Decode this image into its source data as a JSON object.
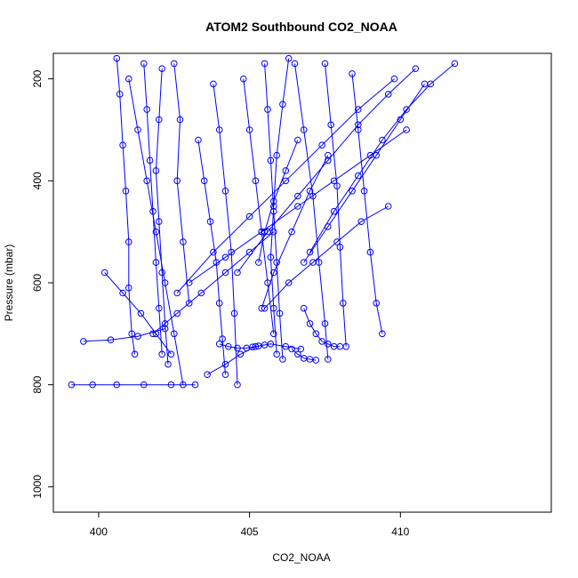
{
  "chart_data": {
    "type": "line",
    "title": "ATOM2 Southbound CO2_NOAA",
    "xlabel": "CO2_NOAA",
    "ylabel": "Pressure (mbar)",
    "xlim": [
      398.5,
      415
    ],
    "ylim": [
      1050,
      150
    ],
    "y_reversed": true,
    "x_ticks": [
      400,
      405,
      410
    ],
    "y_ticks": [
      200,
      400,
      600,
      800,
      1000
    ],
    "grid": false,
    "legend": "none",
    "color": "#0000ff",
    "markers": "open-circle",
    "series": [
      {
        "x": [
          400.6,
          400.7,
          400.8,
          400.9,
          401.0,
          401.0,
          401.1,
          401.2
        ],
        "y": [
          160,
          230,
          330,
          420,
          520,
          610,
          700,
          740
        ]
      },
      {
        "x": [
          401.5,
          401.6,
          401.7,
          401.8,
          401.9,
          402.0,
          402.1
        ],
        "y": [
          170,
          260,
          360,
          460,
          560,
          650,
          740
        ]
      },
      {
        "x": [
          402.1,
          402.0,
          401.9,
          402.0,
          402.1,
          402.2,
          402.3
        ],
        "y": [
          180,
          280,
          380,
          480,
          580,
          680,
          760
        ]
      },
      {
        "x": [
          401.0,
          401.3,
          401.6,
          401.9,
          402.2,
          402.5,
          402.8
        ],
        "y": [
          200,
          300,
          400,
          500,
          600,
          700,
          800
        ]
      },
      {
        "x": [
          400.2,
          400.8,
          401.4,
          401.9,
          402.4
        ],
        "y": [
          580,
          620,
          660,
          700,
          740
        ]
      },
      {
        "x": [
          399.1,
          399.8,
          400.6,
          401.5,
          402.4,
          403.2
        ],
        "y": [
          800,
          800,
          800,
          800,
          800,
          800
        ]
      },
      {
        "x": [
          399.5,
          400.4,
          401.3,
          402.2
        ],
        "y": [
          715,
          712,
          705,
          690
        ]
      },
      {
        "x": [
          402.5,
          402.7,
          402.6,
          402.8,
          403.0
        ],
        "y": [
          170,
          280,
          400,
          520,
          640
        ]
      },
      {
        "x": [
          403.3,
          403.5,
          403.7,
          403.9,
          404.0,
          404.1,
          404.2
        ],
        "y": [
          320,
          400,
          480,
          560,
          640,
          710,
          780
        ]
      },
      {
        "x": [
          403.8,
          404.0,
          404.2,
          404.4,
          404.5,
          404.6
        ],
        "y": [
          210,
          300,
          420,
          540,
          660,
          800
        ]
      },
      {
        "x": [
          404.0,
          404.3,
          404.6,
          404.9,
          405.1,
          405.3,
          405.5
        ],
        "y": [
          720,
          725,
          728,
          728,
          726,
          724,
          722
        ]
      },
      {
        "x": [
          403.6,
          404.2,
          404.7,
          405.2,
          405.7,
          406.2,
          406.7
        ],
        "y": [
          780,
          760,
          740,
          725,
          720,
          725,
          730
        ]
      },
      {
        "x": [
          405.5,
          405.6,
          405.7,
          405.8,
          405.9,
          406.0,
          406.1
        ],
        "y": [
          170,
          260,
          360,
          460,
          560,
          660,
          750
        ]
      },
      {
        "x": [
          406.3,
          406.1,
          405.9,
          405.8,
          405.7,
          405.8,
          405.9
        ],
        "y": [
          160,
          250,
          350,
          450,
          550,
          650,
          740
        ]
      },
      {
        "x": [
          404.8,
          405.0,
          405.2,
          405.4,
          405.6,
          405.8
        ],
        "y": [
          200,
          300,
          400,
          500,
          600,
          700
        ]
      },
      {
        "x": [
          406.5,
          406.8,
          407.1,
          407.3,
          407.5,
          407.6
        ],
        "y": [
          170,
          300,
          430,
          560,
          680,
          750
        ]
      },
      {
        "x": [
          407.5,
          407.7,
          407.9,
          408.0,
          408.1,
          408.2
        ],
        "y": [
          170,
          290,
          410,
          530,
          640,
          725
        ]
      },
      {
        "x": [
          408.4,
          408.6,
          408.8,
          409.0,
          409.2,
          409.4
        ],
        "y": [
          190,
          300,
          420,
          540,
          640,
          700
        ]
      },
      {
        "x": [
          411.8,
          411.0,
          410.2,
          409.4,
          408.6,
          407.8,
          407.0
        ],
        "y": [
          170,
          210,
          260,
          320,
          390,
          460,
          540
        ]
      },
      {
        "x": [
          410.5,
          409.6,
          408.6,
          407.6,
          406.6,
          405.6,
          404.6
        ],
        "y": [
          180,
          230,
          290,
          360,
          430,
          500,
          580
        ]
      },
      {
        "x": [
          409.8,
          408.6,
          407.4,
          406.2,
          405.0,
          403.8,
          402.6
        ],
        "y": [
          200,
          260,
          330,
          400,
          470,
          540,
          620
        ]
      },
      {
        "x": [
          410.8,
          410.0,
          409.2,
          408.4,
          407.6,
          406.8
        ],
        "y": [
          210,
          280,
          350,
          420,
          490,
          560
        ]
      },
      {
        "x": [
          410.2,
          409.0,
          407.8,
          406.6,
          405.4,
          404.2,
          403.0
        ],
        "y": [
          300,
          350,
          400,
          450,
          500,
          550,
          600
        ]
      },
      {
        "x": [
          409.6,
          408.7,
          407.9,
          407.1,
          406.3,
          405.5
        ],
        "y": [
          450,
          480,
          520,
          560,
          600,
          650
        ]
      },
      {
        "x": [
          406.8,
          407.0,
          407.2,
          407.4,
          407.6,
          407.8,
          408.0
        ],
        "y": [
          650,
          680,
          700,
          715,
          720,
          725,
          725
        ]
      },
      {
        "x": [
          406.4,
          406.6,
          406.8,
          407.0,
          407.2
        ],
        "y": [
          730,
          740,
          748,
          750,
          752
        ]
      },
      {
        "x": [
          407.6,
          407.0,
          406.4,
          405.8,
          405.4
        ],
        "y": [
          350,
          420,
          500,
          580,
          650
        ]
      },
      {
        "x": [
          406.6,
          406.2,
          405.8,
          405.5,
          405.3
        ],
        "y": [
          320,
          380,
          440,
          500,
          560
        ]
      },
      {
        "x": [
          401.8,
          402.6,
          403.4,
          404.2,
          405.0,
          405.8
        ],
        "y": [
          700,
          660,
          620,
          580,
          540,
          500
        ]
      }
    ]
  }
}
